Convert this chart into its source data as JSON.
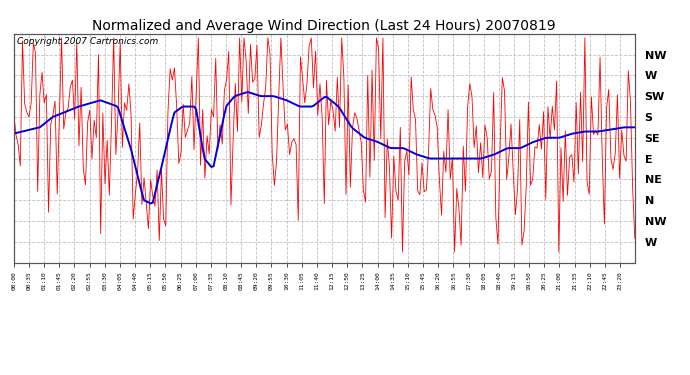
{
  "title": "Normalized and Average Wind Direction (Last 24 Hours) 20070819",
  "copyright": "Copyright 2007 Cartronics.com",
  "ytick_labels_left": [],
  "ytick_labels_right": [
    "NW",
    "W",
    "SW",
    "S",
    "SE",
    "E",
    "NE",
    "N",
    "NW",
    "W"
  ],
  "ytick_values": [
    10,
    9,
    8,
    7,
    6,
    5,
    4,
    3,
    2,
    1
  ],
  "ylim": [
    0.0,
    11.0
  ],
  "bg_color": "#ffffff",
  "grid_color": "#c0c0c0",
  "red_color": "#ff0000",
  "blue_color": "#0000dd",
  "title_fontsize": 10,
  "copyright_fontsize": 6.5,
  "xtick_interval_min": 35,
  "total_minutes": 1435,
  "n_points": 287
}
